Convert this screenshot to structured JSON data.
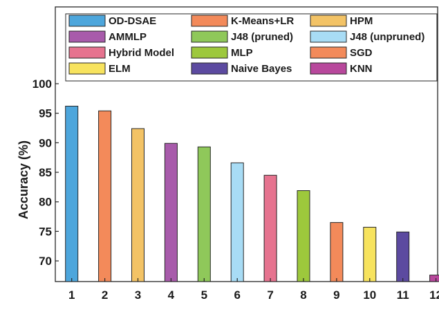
{
  "chart_data": {
    "type": "bar",
    "title": "",
    "xlabel": "",
    "ylabel": "Accuracy (%)",
    "categories": [
      "1",
      "2",
      "3",
      "4",
      "5",
      "6",
      "7",
      "8",
      "9",
      "10",
      "11",
      "12"
    ],
    "yticks": [
      "70",
      "75",
      "80",
      "85",
      "90",
      "95",
      "100"
    ],
    "ylim": [
      66.5,
      113
    ],
    "grid": false,
    "legend_position": "top",
    "series": [
      {
        "name": "OD-DSAE",
        "category": "1",
        "value": 96.2,
        "color": "#4da6dc"
      },
      {
        "name": "K-Means+LR",
        "category": "2",
        "value": 95.4,
        "color": "#f38a5a"
      },
      {
        "name": "HPM",
        "category": "3",
        "value": 92.4,
        "color": "#f3c366"
      },
      {
        "name": "AMMLP",
        "category": "4",
        "value": 89.9,
        "color": "#a85bab"
      },
      {
        "name": "J48 (pruned)",
        "category": "5",
        "value": 89.3,
        "color": "#8fc85a"
      },
      {
        "name": "J48 (unpruned)",
        "category": "6",
        "value": 86.6,
        "color": "#a8dcf5"
      },
      {
        "name": "Hybrid Model",
        "category": "7",
        "value": 84.5,
        "color": "#e6738f"
      },
      {
        "name": "MLP",
        "category": "8",
        "value": 81.9,
        "color": "#9dc83c"
      },
      {
        "name": "SGD",
        "category": "9",
        "value": 76.5,
        "color": "#f38a5a"
      },
      {
        "name": "ELM",
        "category": "10",
        "value": 75.7,
        "color": "#f7e35e"
      },
      {
        "name": "Naive Bayes",
        "category": "11",
        "value": 74.9,
        "color": "#5c4aa0"
      },
      {
        "name": "KNN",
        "category": "12",
        "value": 67.6,
        "color": "#b8489c"
      }
    ]
  }
}
